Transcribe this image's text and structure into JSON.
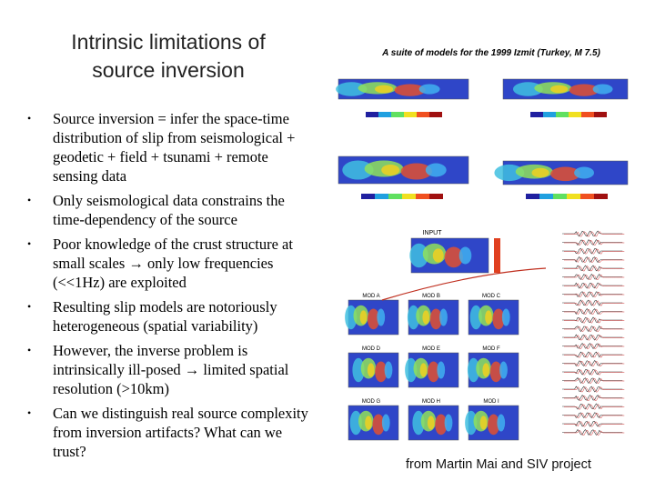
{
  "title": {
    "line1": "Intrinsic limitations of",
    "line2": "source inversion"
  },
  "bullets": [
    "Source inversion = infer the space-time distribution of slip from seismological + geodetic + field + tsunami + remote sensing data",
    "Only seismological data constrains the time-dependency of the source",
    "Poor knowledge of the crust structure at small scales → only low frequencies (<<1Hz) are exploited",
    "Resulting slip models are notoriously heterogeneous (spatial variability)",
    "However, the inverse problem is intrinsically ill-posed → limited spatial resolution (>10km)",
    "Can we distinguish real source complexity from inversion artifacts? What can we trust?"
  ],
  "figure": {
    "heading": "A suite of models for the 1999 Izmit (Turkey, M 7.5)",
    "input_label": "INPUT",
    "model_labels": [
      "MOD A",
      "MOD B",
      "MOD C",
      "MOD D",
      "MOD E",
      "MOD F",
      "MOD G",
      "MOD H",
      "MOD I"
    ]
  },
  "caption": "from Martin Mai and SIV project"
}
